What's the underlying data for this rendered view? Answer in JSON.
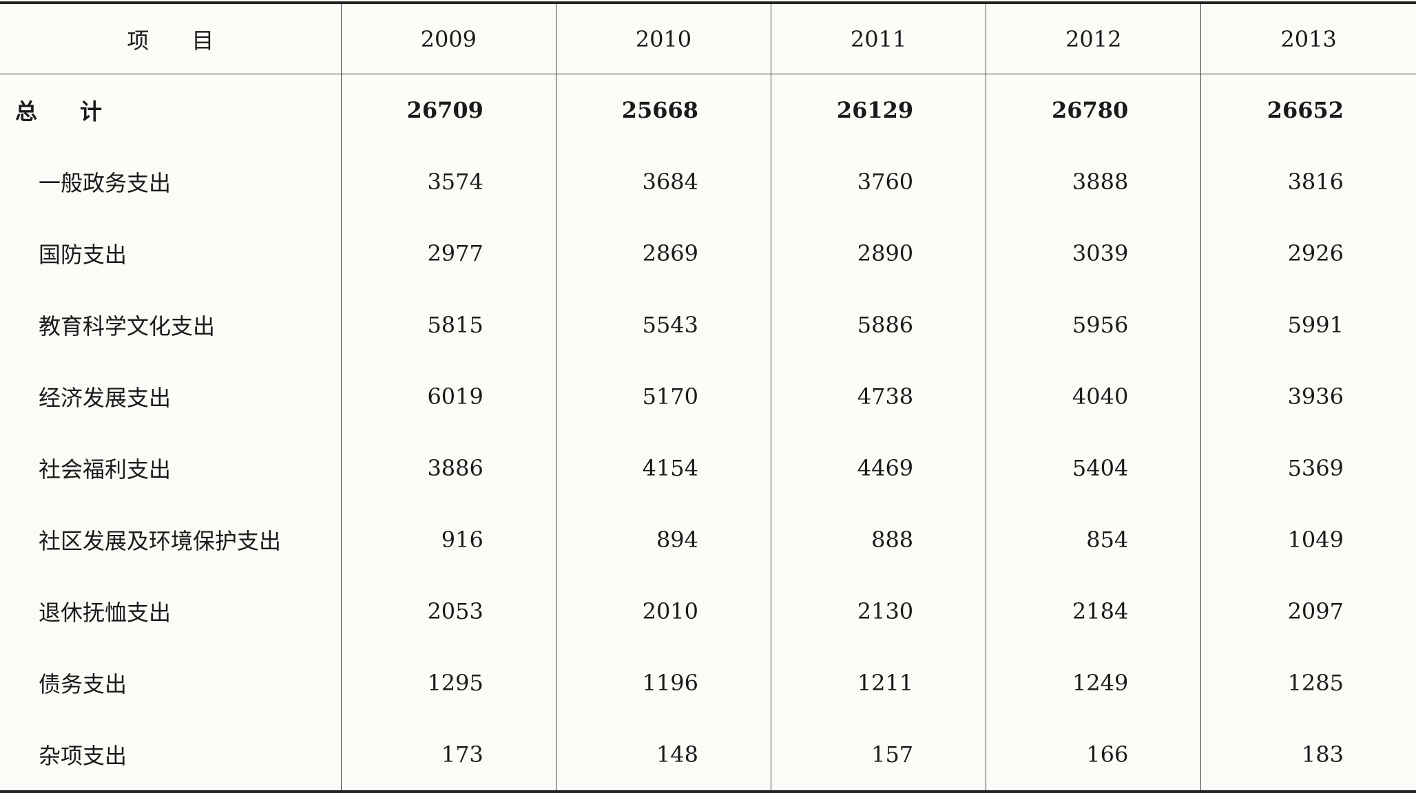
{
  "table": {
    "header": {
      "item_char1": "项",
      "item_char2": "目",
      "years": [
        "2009",
        "2010",
        "2011",
        "2012",
        "2013"
      ]
    },
    "total": {
      "label_char1": "总",
      "label_char2": "计",
      "values": [
        "26709",
        "25668",
        "26129",
        "26780",
        "26652"
      ]
    },
    "rows": [
      {
        "label": "一般政务支出",
        "values": [
          "3574",
          "3684",
          "3760",
          "3888",
          "3816"
        ]
      },
      {
        "label": "国防支出",
        "values": [
          "2977",
          "2869",
          "2890",
          "3039",
          "2926"
        ]
      },
      {
        "label": "教育科学文化支出",
        "values": [
          "5815",
          "5543",
          "5886",
          "5956",
          "5991"
        ]
      },
      {
        "label": "经济发展支出",
        "values": [
          "6019",
          "5170",
          "4738",
          "4040",
          "3936"
        ]
      },
      {
        "label": "社会福利支出",
        "values": [
          "3886",
          "4154",
          "4469",
          "5404",
          "5369"
        ]
      },
      {
        "label": "社区发展及环境保护支出",
        "values": [
          "916",
          "894",
          "888",
          "854",
          "1049"
        ]
      },
      {
        "label": "退休抚恤支出",
        "values": [
          "2053",
          "2010",
          "2130",
          "2184",
          "2097"
        ]
      },
      {
        "label": "债务支出",
        "values": [
          "1295",
          "1196",
          "1211",
          "1249",
          "1285"
        ]
      },
      {
        "label": "杂项支出",
        "values": [
          "173",
          "148",
          "157",
          "166",
          "183"
        ]
      }
    ]
  }
}
